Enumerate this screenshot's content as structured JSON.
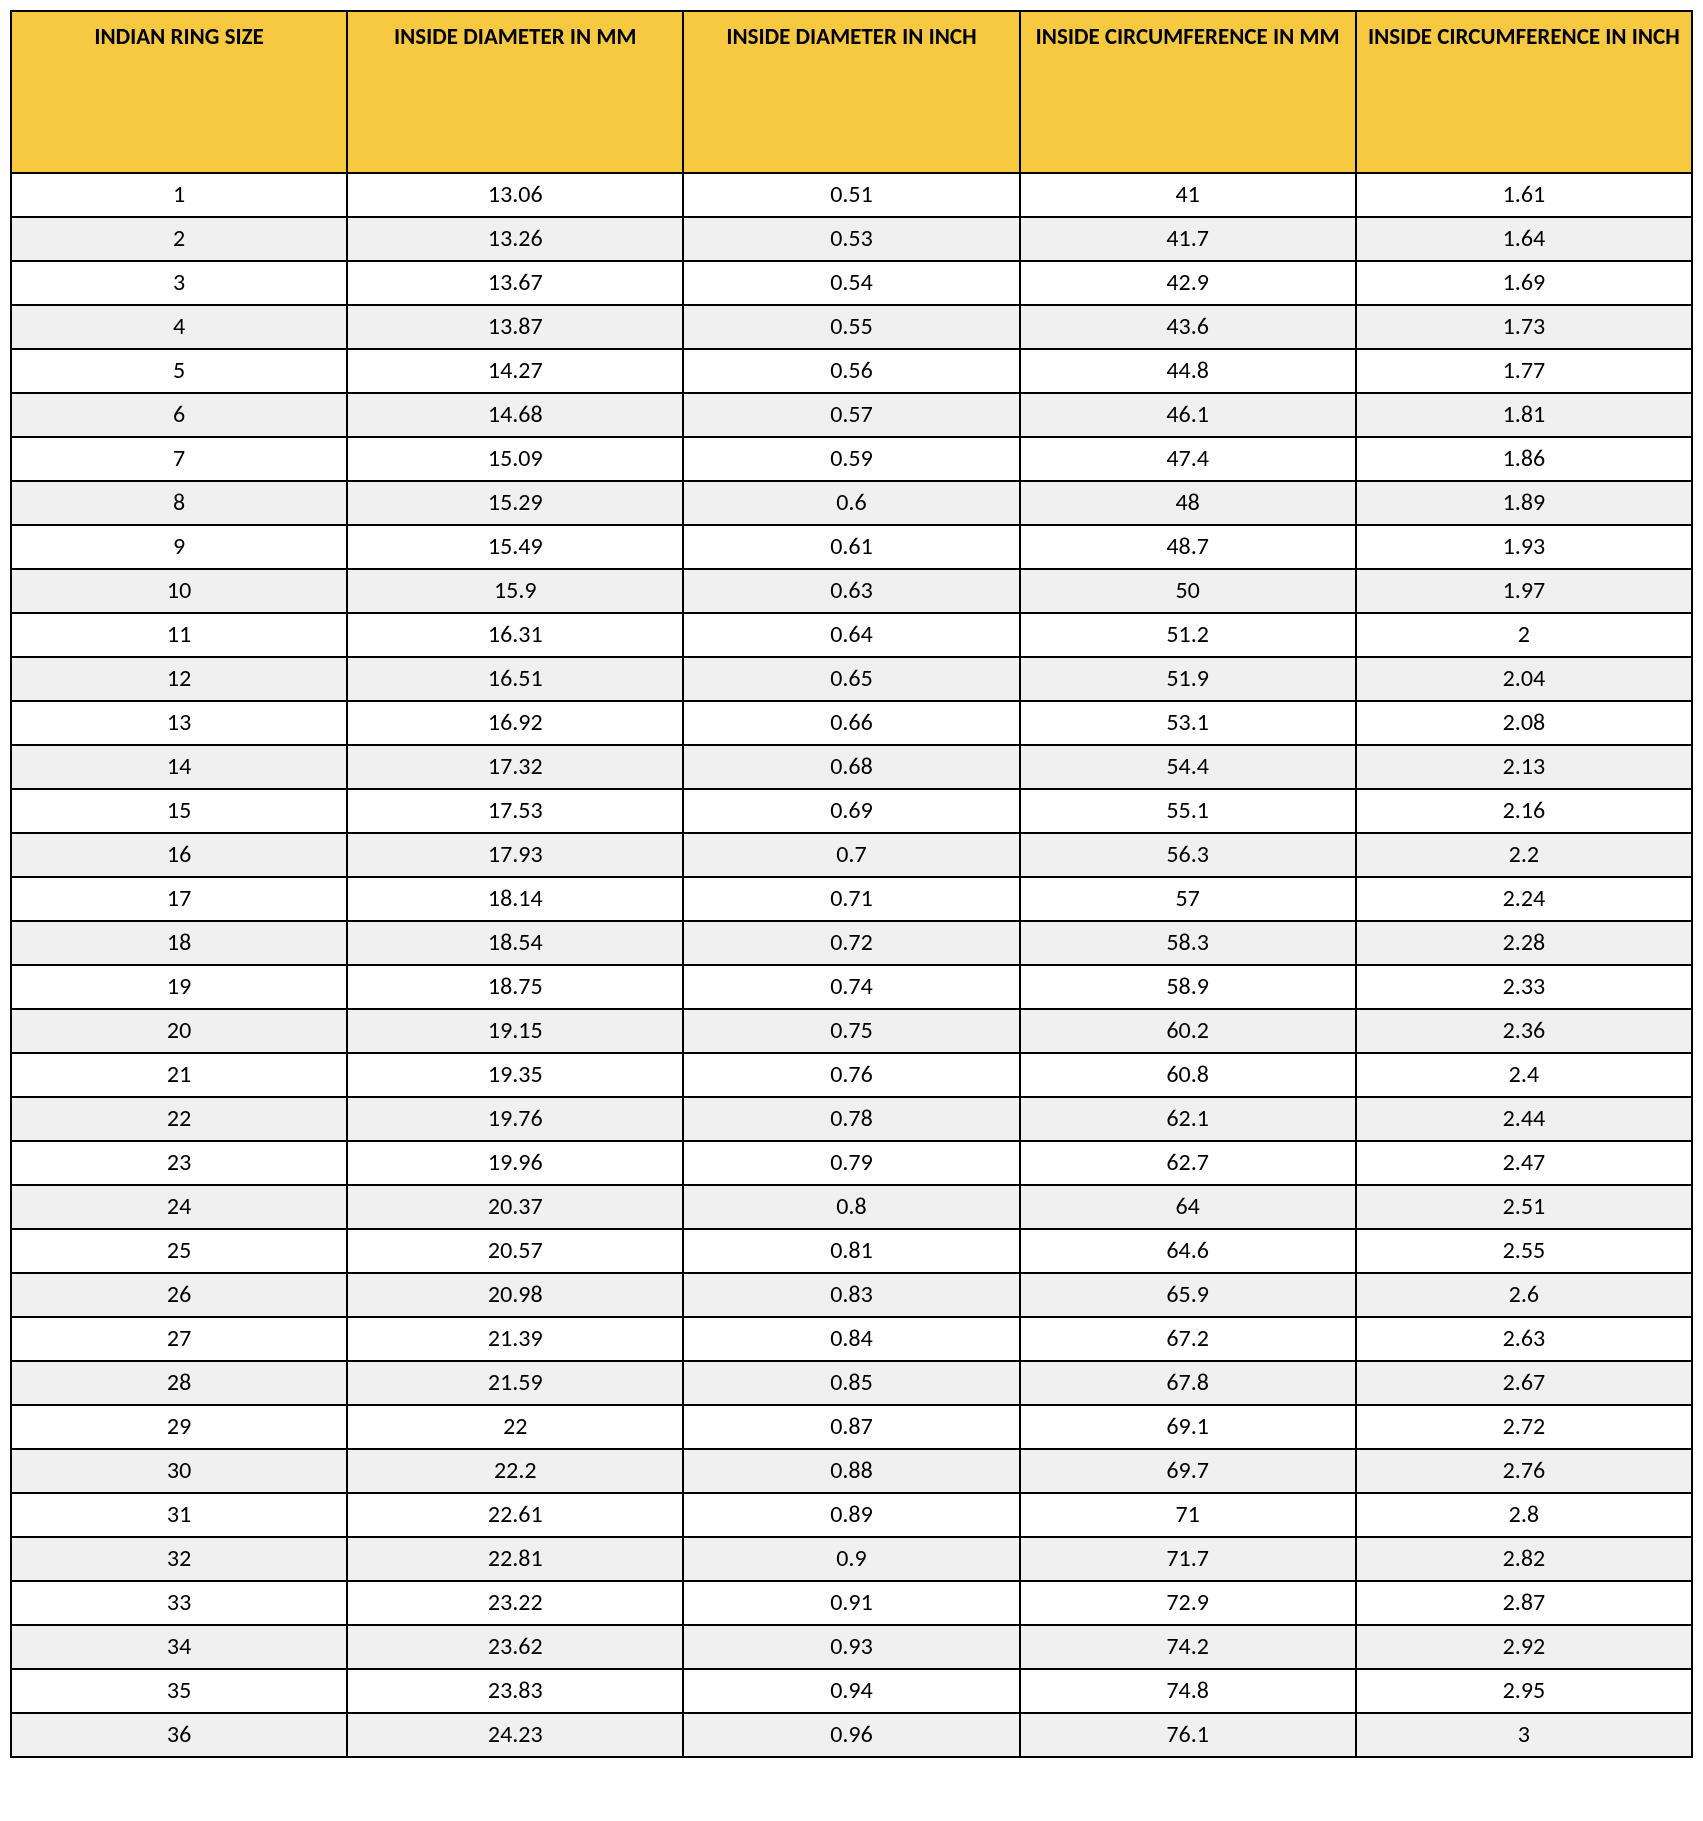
{
  "table": {
    "type": "table",
    "header_bg": "#f7c940",
    "header_border": "#000000",
    "row_border": "#000000",
    "alt_row_bg": "#f0f0f0",
    "row_bg": "#ffffff",
    "header_font_weight": "700",
    "header_font_size_pt": 17,
    "cell_font_size_pt": 18,
    "columns": [
      "INDIAN RING SIZE",
      "INSIDE DIAMETER IN MM",
      "INSIDE DIAMETER IN INCH",
      "INSIDE CIRCUMFERENCE IN MM",
      "INSIDE CIRCUMFERENCE IN INCH"
    ],
    "column_widths_pct": [
      20,
      20,
      20,
      20,
      20
    ],
    "rows": [
      [
        "1",
        "13.06",
        "0.51",
        "41",
        "1.61"
      ],
      [
        "2",
        "13.26",
        "0.53",
        "41.7",
        "1.64"
      ],
      [
        "3",
        "13.67",
        "0.54",
        "42.9",
        "1.69"
      ],
      [
        "4",
        "13.87",
        "0.55",
        "43.6",
        "1.73"
      ],
      [
        "5",
        "14.27",
        "0.56",
        "44.8",
        "1.77"
      ],
      [
        "6",
        "14.68",
        "0.57",
        "46.1",
        "1.81"
      ],
      [
        "7",
        "15.09",
        "0.59",
        "47.4",
        "1.86"
      ],
      [
        "8",
        "15.29",
        "0.6",
        "48",
        "1.89"
      ],
      [
        "9",
        "15.49",
        "0.61",
        "48.7",
        "1.93"
      ],
      [
        "10",
        "15.9",
        "0.63",
        "50",
        "1.97"
      ],
      [
        "11",
        "16.31",
        "0.64",
        "51.2",
        "2"
      ],
      [
        "12",
        "16.51",
        "0.65",
        "51.9",
        "2.04"
      ],
      [
        "13",
        "16.92",
        "0.66",
        "53.1",
        "2.08"
      ],
      [
        "14",
        "17.32",
        "0.68",
        "54.4",
        "2.13"
      ],
      [
        "15",
        "17.53",
        "0.69",
        "55.1",
        "2.16"
      ],
      [
        "16",
        "17.93",
        "0.7",
        "56.3",
        "2.2"
      ],
      [
        "17",
        "18.14",
        "0.71",
        "57",
        "2.24"
      ],
      [
        "18",
        "18.54",
        "0.72",
        "58.3",
        "2.28"
      ],
      [
        "19",
        "18.75",
        "0.74",
        "58.9",
        "2.33"
      ],
      [
        "20",
        "19.15",
        "0.75",
        "60.2",
        "2.36"
      ],
      [
        "21",
        "19.35",
        "0.76",
        "60.8",
        "2.4"
      ],
      [
        "22",
        "19.76",
        "0.78",
        "62.1",
        "2.44"
      ],
      [
        "23",
        "19.96",
        "0.79",
        "62.7",
        "2.47"
      ],
      [
        "24",
        "20.37",
        "0.8",
        "64",
        "2.51"
      ],
      [
        "25",
        "20.57",
        "0.81",
        "64.6",
        "2.55"
      ],
      [
        "26",
        "20.98",
        "0.83",
        "65.9",
        "2.6"
      ],
      [
        "27",
        "21.39",
        "0.84",
        "67.2",
        "2.63"
      ],
      [
        "28",
        "21.59",
        "0.85",
        "67.8",
        "2.67"
      ],
      [
        "29",
        "22",
        "0.87",
        "69.1",
        "2.72"
      ],
      [
        "30",
        "22.2",
        "0.88",
        "69.7",
        "2.76"
      ],
      [
        "31",
        "22.61",
        "0.89",
        "71",
        "2.8"
      ],
      [
        "32",
        "22.81",
        "0.9",
        "71.7",
        "2.82"
      ],
      [
        "33",
        "23.22",
        "0.91",
        "72.9",
        "2.87"
      ],
      [
        "34",
        "23.62",
        "0.93",
        "74.2",
        "2.92"
      ],
      [
        "35",
        "23.83",
        "0.94",
        "74.8",
        "2.95"
      ],
      [
        "36",
        "24.23",
        "0.96",
        "76.1",
        "3"
      ]
    ]
  }
}
